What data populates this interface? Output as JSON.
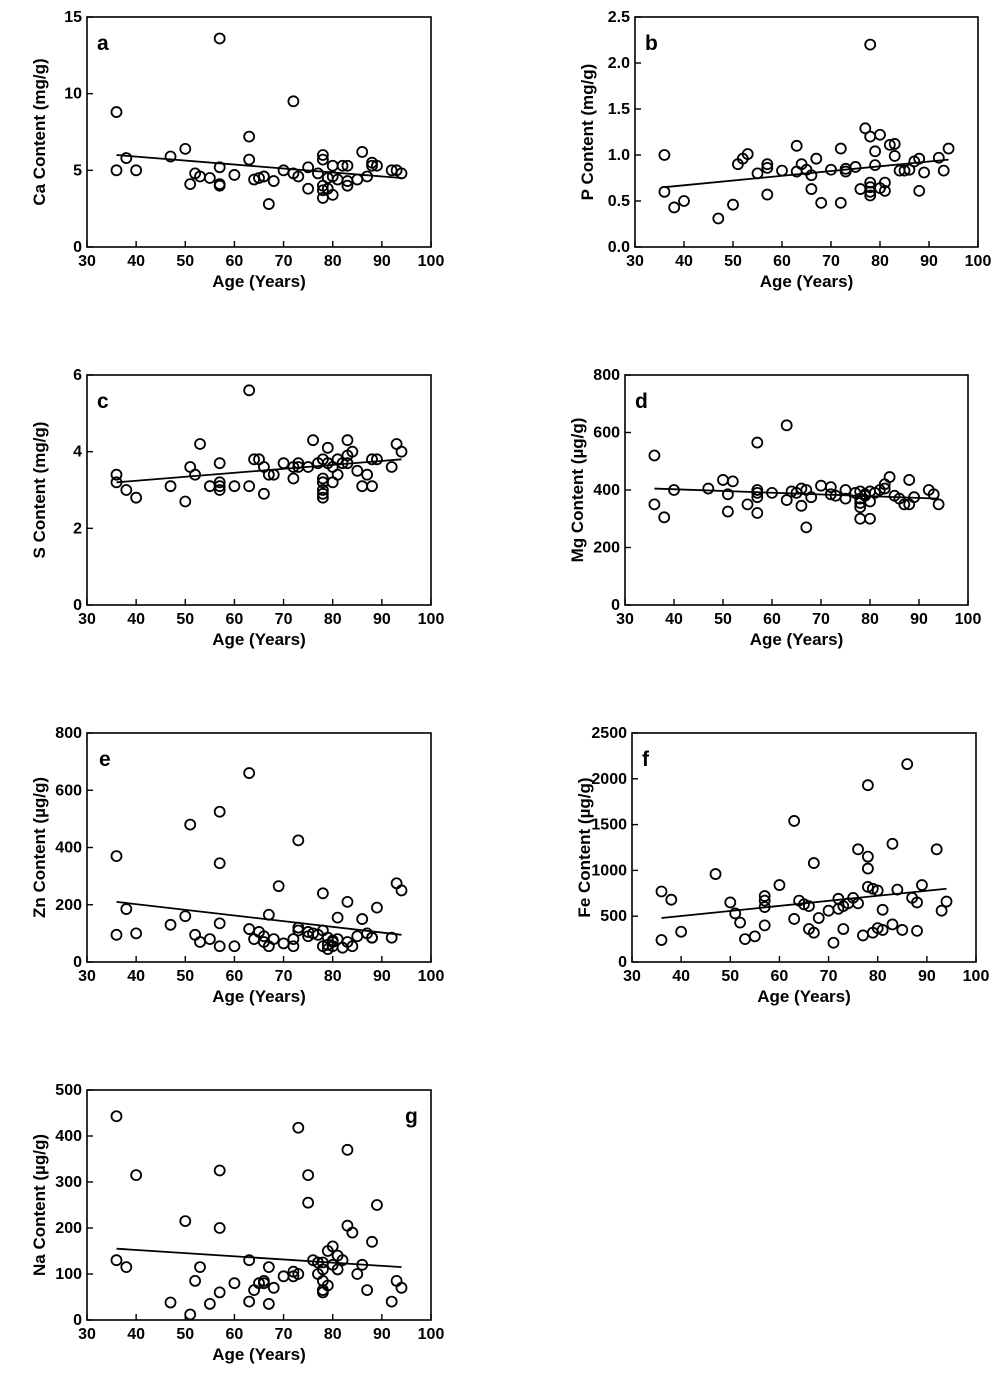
{
  "chart_data": [
    {
      "type": "scatter",
      "label": "a",
      "xlabel": "Age (Years)",
      "ylabel": "Ca Content (mg/g)",
      "xlim": [
        30,
        100
      ],
      "ylim": [
        0,
        15
      ],
      "xticks": [
        "30",
        "40",
        "50",
        "60",
        "70",
        "80",
        "90",
        "100"
      ],
      "yticks": [
        "0",
        "5",
        "10",
        "15"
      ],
      "trend": [
        [
          36,
          6.0
        ],
        [
          94,
          4.5
        ]
      ],
      "x": [
        36,
        36,
        38,
        40,
        47,
        50,
        51,
        52,
        53,
        55,
        57,
        57,
        57,
        57,
        60,
        63,
        63,
        64,
        65,
        66,
        66,
        67,
        68,
        70,
        72,
        72,
        73,
        75,
        75,
        77,
        78,
        78,
        78,
        78,
        78,
        79,
        79,
        80,
        80,
        80,
        81,
        82,
        83,
        83,
        83,
        85,
        86,
        87,
        88,
        88,
        89,
        92,
        93,
        94
      ],
      "y": [
        8.8,
        5.0,
        5.8,
        5.0,
        5.9,
        6.4,
        4.1,
        4.8,
        4.6,
        4.5,
        13.6,
        5.2,
        4.1,
        4.0,
        4.7,
        7.2,
        5.7,
        4.4,
        4.5,
        4.6,
        4.6,
        2.8,
        4.3,
        5.0,
        9.5,
        4.8,
        4.6,
        5.2,
        3.8,
        4.8,
        6.0,
        5.7,
        4.0,
        3.7,
        3.2,
        4.5,
        3.8,
        5.3,
        4.6,
        3.4,
        4.4,
        5.3,
        5.3,
        4.0,
        4.3,
        4.4,
        6.2,
        4.6,
        5.5,
        5.3,
        5.3,
        5.0,
        5.0,
        4.8
      ]
    },
    {
      "type": "scatter",
      "label": "b",
      "xlabel": "Age (Years)",
      "ylabel": "P Content (mg/g)",
      "xlim": [
        30,
        100
      ],
      "ylim": [
        0,
        2.5
      ],
      "xticks": [
        "30",
        "40",
        "50",
        "60",
        "70",
        "80",
        "90",
        "100"
      ],
      "yticks": [
        "0.0",
        "0.5",
        "1.0",
        "1.5",
        "2.0",
        "2.5"
      ],
      "trend": [
        [
          36,
          0.65
        ],
        [
          94,
          0.95
        ]
      ],
      "x": [
        36,
        36,
        38,
        40,
        47,
        50,
        51,
        52,
        53,
        55,
        57,
        57,
        57,
        60,
        63,
        63,
        64,
        65,
        66,
        66,
        67,
        68,
        70,
        72,
        72,
        73,
        73,
        75,
        76,
        77,
        78,
        78,
        78,
        78,
        78,
        78,
        79,
        79,
        80,
        80,
        81,
        81,
        82,
        83,
        83,
        84,
        85,
        86,
        87,
        88,
        88,
        89,
        92,
        93,
        94
      ],
      "y": [
        1.0,
        0.6,
        0.43,
        0.5,
        0.31,
        0.46,
        0.9,
        0.96,
        1.01,
        0.8,
        0.9,
        0.86,
        0.57,
        0.83,
        1.1,
        0.82,
        0.9,
        0.84,
        0.63,
        0.78,
        0.96,
        0.48,
        0.84,
        1.07,
        0.48,
        0.82,
        0.85,
        0.87,
        0.63,
        1.29,
        2.2,
        1.2,
        0.7,
        0.65,
        0.6,
        0.56,
        0.89,
        1.04,
        1.22,
        0.64,
        0.7,
        0.61,
        1.11,
        1.12,
        0.99,
        0.83,
        0.83,
        0.84,
        0.93,
        0.96,
        0.61,
        0.81,
        0.97,
        0.83,
        1.07
      ]
    },
    {
      "type": "scatter",
      "label": "c",
      "xlabel": "Age (Years)",
      "ylabel": "S Content (mg/g)",
      "xlim": [
        30,
        100
      ],
      "ylim": [
        0,
        6
      ],
      "xticks": [
        "30",
        "40",
        "50",
        "60",
        "70",
        "80",
        "90",
        "100"
      ],
      "yticks": [
        "0",
        "2",
        "4",
        "6"
      ],
      "trend": [
        [
          36,
          3.2
        ],
        [
          94,
          3.8
        ]
      ],
      "x": [
        36,
        36,
        38,
        40,
        47,
        50,
        51,
        52,
        53,
        55,
        57,
        57,
        57,
        57,
        60,
        63,
        63,
        64,
        65,
        66,
        66,
        67,
        68,
        70,
        72,
        72,
        73,
        73,
        75,
        76,
        77,
        78,
        78,
        78,
        78,
        78,
        78,
        79,
        79,
        80,
        80,
        81,
        81,
        82,
        83,
        83,
        83,
        84,
        85,
        86,
        87,
        88,
        88,
        89,
        92,
        93,
        94
      ],
      "y": [
        3.4,
        3.2,
        3.0,
        2.8,
        3.1,
        2.7,
        3.6,
        3.4,
        4.2,
        3.1,
        3.7,
        3.2,
        3.0,
        3.1,
        3.1,
        5.6,
        3.1,
        3.8,
        3.8,
        2.9,
        3.6,
        3.4,
        3.4,
        3.7,
        3.3,
        3.6,
        3.7,
        3.6,
        3.6,
        4.3,
        3.7,
        3.8,
        3.3,
        3.2,
        3.0,
        2.9,
        2.8,
        3.7,
        4.1,
        3.6,
        3.2,
        3.8,
        3.4,
        3.7,
        4.3,
        3.9,
        3.7,
        4.0,
        3.5,
        3.1,
        3.4,
        3.1,
        3.8,
        3.8,
        3.6,
        4.2,
        4.0
      ]
    },
    {
      "type": "scatter",
      "label": "d",
      "xlabel": "Age (Years)",
      "ylabel": "Mg Content (µg/g)",
      "xlim": [
        30,
        100
      ],
      "ylim": [
        0,
        800
      ],
      "xticks": [
        "30",
        "40",
        "50",
        "60",
        "70",
        "80",
        "90",
        "100"
      ],
      "yticks": [
        "0",
        "200",
        "400",
        "600",
        "800"
      ],
      "trend": [
        [
          36,
          405
        ],
        [
          94,
          370
        ]
      ],
      "x": [
        36,
        36,
        38,
        40,
        47,
        50,
        51,
        51,
        52,
        55,
        57,
        57,
        57,
        57,
        57,
        60,
        63,
        63,
        64,
        65,
        66,
        66,
        67,
        67,
        68,
        70,
        72,
        72,
        73,
        75,
        75,
        77,
        78,
        78,
        78,
        78,
        78,
        79,
        79,
        80,
        80,
        80,
        81,
        82,
        83,
        83,
        84,
        85,
        86,
        87,
        88,
        88,
        89,
        92,
        93,
        94
      ],
      "y": [
        520,
        350,
        305,
        400,
        405,
        435,
        325,
        385,
        430,
        350,
        565,
        400,
        375,
        320,
        390,
        390,
        625,
        365,
        395,
        390,
        405,
        345,
        400,
        270,
        375,
        415,
        410,
        385,
        380,
        400,
        370,
        390,
        395,
        370,
        355,
        340,
        300,
        385,
        380,
        395,
        360,
        300,
        390,
        400,
        420,
        405,
        445,
        380,
        370,
        350,
        435,
        350,
        375,
        400,
        385,
        350
      ]
    },
    {
      "type": "scatter",
      "label": "e",
      "xlabel": "Age (Years)",
      "ylabel": "Zn Content (µg/g)",
      "xlim": [
        30,
        100
      ],
      "ylim": [
        0,
        800
      ],
      "xticks": [
        "30",
        "40",
        "50",
        "60",
        "70",
        "80",
        "90",
        "100"
      ],
      "yticks": [
        "0",
        "200",
        "400",
        "600",
        "800"
      ],
      "trend": [
        [
          36,
          210
        ],
        [
          94,
          95
        ]
      ],
      "x": [
        36,
        36,
        38,
        40,
        47,
        50,
        51,
        52,
        53,
        55,
        57,
        57,
        57,
        57,
        60,
        63,
        63,
        64,
        65,
        66,
        66,
        67,
        67,
        68,
        69,
        70,
        72,
        72,
        73,
        73,
        73,
        75,
        75,
        76,
        77,
        78,
        78,
        78,
        79,
        79,
        79,
        80,
        80,
        80,
        81,
        81,
        82,
        83,
        83,
        84,
        85,
        86,
        87,
        88,
        88,
        89,
        92,
        93,
        94
      ],
      "y": [
        370,
        95,
        185,
        100,
        130,
        160,
        480,
        95,
        70,
        80,
        525,
        345,
        135,
        55,
        55,
        660,
        115,
        80,
        105,
        90,
        70,
        165,
        55,
        80,
        265,
        65,
        55,
        80,
        425,
        120,
        110,
        90,
        105,
        100,
        95,
        240,
        110,
        55,
        85,
        60,
        45,
        70,
        75,
        55,
        155,
        80,
        50,
        70,
        210,
        55,
        90,
        150,
        100,
        85,
        85,
        190,
        85,
        275,
        250
      ]
    },
    {
      "type": "scatter",
      "label": "f",
      "xlabel": "Age (Years)",
      "ylabel": "Fe Content (µg/g)",
      "xlim": [
        30,
        100
      ],
      "ylim": [
        0,
        2500
      ],
      "xticks": [
        "30",
        "40",
        "50",
        "60",
        "70",
        "80",
        "90",
        "100"
      ],
      "yticks": [
        "0",
        "500",
        "1000",
        "1500",
        "2000",
        "2500"
      ],
      "trend": [
        [
          36,
          480
        ],
        [
          94,
          800
        ]
      ],
      "x": [
        36,
        36,
        38,
        40,
        47,
        50,
        51,
        52,
        53,
        55,
        57,
        57,
        57,
        57,
        60,
        63,
        63,
        64,
        65,
        66,
        66,
        67,
        67,
        68,
        70,
        71,
        72,
        72,
        73,
        73,
        74,
        75,
        76,
        76,
        77,
        78,
        78,
        78,
        78,
        79,
        79,
        80,
        80,
        81,
        81,
        83,
        83,
        84,
        85,
        86,
        87,
        88,
        88,
        89,
        92,
        93,
        94
      ],
      "y": [
        770,
        240,
        680,
        330,
        960,
        650,
        530,
        430,
        250,
        280,
        720,
        670,
        600,
        400,
        840,
        1540,
        470,
        670,
        630,
        360,
        610,
        1080,
        320,
        480,
        560,
        210,
        690,
        580,
        360,
        610,
        640,
        700,
        1230,
        640,
        290,
        1930,
        1150,
        1020,
        820,
        800,
        320,
        780,
        370,
        570,
        350,
        1290,
        410,
        790,
        350,
        2160,
        700,
        650,
        340,
        840,
        1230,
        560,
        660
      ]
    },
    {
      "type": "scatter",
      "label": "g",
      "xlabel": "Age (Years)",
      "ylabel": "Na Content (µg/g)",
      "xlim": [
        30,
        100
      ],
      "ylim": [
        0,
        500
      ],
      "xticks": [
        "30",
        "40",
        "50",
        "60",
        "70",
        "80",
        "90",
        "100"
      ],
      "yticks": [
        "0",
        "100",
        "200",
        "300",
        "400",
        "500"
      ],
      "trend": [
        [
          36,
          155
        ],
        [
          94,
          115
        ]
      ],
      "x": [
        36,
        36,
        38,
        40,
        47,
        50,
        51,
        52,
        53,
        55,
        57,
        57,
        57,
        60,
        63,
        63,
        64,
        65,
        66,
        66,
        67,
        67,
        68,
        70,
        72,
        72,
        73,
        73,
        75,
        75,
        76,
        77,
        77,
        78,
        78,
        78,
        78,
        78,
        79,
        79,
        80,
        80,
        81,
        81,
        82,
        83,
        83,
        84,
        85,
        86,
        87,
        88,
        89,
        92,
        93,
        94
      ],
      "y": [
        443,
        130,
        115,
        315,
        38,
        215,
        12,
        85,
        115,
        35,
        325,
        200,
        60,
        80,
        130,
        40,
        65,
        80,
        85,
        80,
        35,
        115,
        70,
        95,
        105,
        95,
        418,
        100,
        255,
        315,
        130,
        125,
        100,
        85,
        60,
        110,
        65,
        125,
        150,
        75,
        160,
        120,
        140,
        110,
        130,
        370,
        205,
        190,
        100,
        120,
        65,
        170,
        250,
        40,
        85,
        70
      ]
    }
  ]
}
